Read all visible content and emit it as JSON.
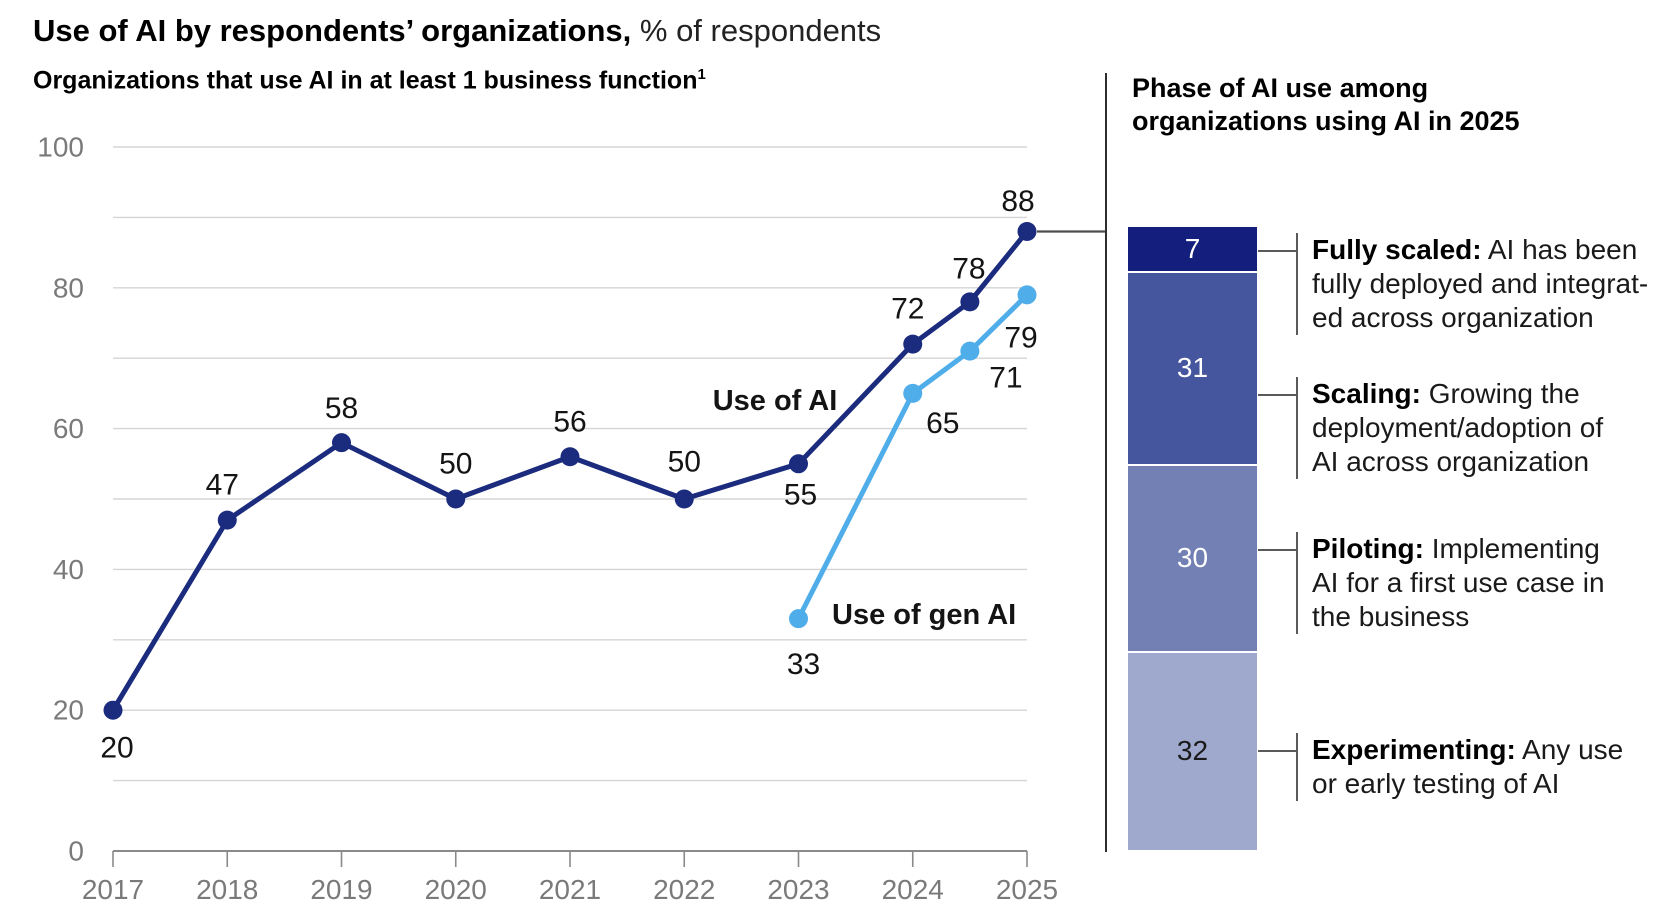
{
  "header": {
    "title_bold": "Use of AI by respondents’ organizations,",
    "title_rest": " % of respondents"
  },
  "left_chart": {
    "subtitle": "Organizations that use AI in at least 1 business function",
    "subtitle_superscript": "1"
  },
  "right_panel": {
    "title": "Phase of AI use among organizations using AI in 2025"
  },
  "chart_data": [
    {
      "type": "line",
      "title": "Organizations that use AI in at least 1 business function",
      "units": "% of respondents",
      "ylim": [
        0,
        100
      ],
      "grid_step": 10,
      "grid": true,
      "y_axis_labels": [
        "0",
        "20",
        "40",
        "60",
        "80",
        "100"
      ],
      "x_tick_labels": [
        "2017",
        "2018",
        "2019",
        "2020",
        "2021",
        "2022",
        "2023",
        "2024",
        "2025"
      ],
      "series": [
        {
          "name": "Use of AI",
          "color": "#1b2b7d",
          "x": [
            2017,
            2018,
            2019,
            2020,
            2021,
            2022,
            2023,
            2024,
            2024.5,
            2025
          ],
          "y": [
            20,
            47,
            58,
            50,
            56,
            50,
            55,
            72,
            78,
            88
          ]
        },
        {
          "name": "Use of gen AI",
          "color": "#4fade9",
          "x": [
            2023,
            2024,
            2024.5,
            2025
          ],
          "y": [
            33,
            65,
            71,
            79
          ]
        }
      ]
    },
    {
      "type": "bar",
      "stacked": true,
      "title": "Phase of AI use among organizations using AI in 2025",
      "total": 100,
      "segments": [
        {
          "name": "Fully scaled",
          "value": 7,
          "color": "#141f7d",
          "number_color": "#ffffff",
          "term": "Fully scaled:",
          "desc_line1": " AI has been",
          "desc_line2": "fully deployed and integrat-",
          "desc_line3": "ed across organization"
        },
        {
          "name": "Scaling",
          "value": 31,
          "color": "#46569e",
          "number_color": "#ffffff",
          "term": "Scaling:",
          "desc_line1": " Growing the",
          "desc_line2": "deployment/adoption of",
          "desc_line3": "AI across organization"
        },
        {
          "name": "Piloting",
          "value": 30,
          "color": "#7280b4",
          "number_color": "#ffffff",
          "term": "Piloting:",
          "desc_line1": " Implementing",
          "desc_line2": "AI for a first use case in",
          "desc_line3": "the business"
        },
        {
          "name": "Experimenting",
          "value": 32,
          "color": "#9fa9cd",
          "number_color": "#1a1a1a",
          "term": "Experimenting:",
          "desc_line1": " Any use",
          "desc_line2": "or early testing of AI"
        }
      ]
    }
  ]
}
